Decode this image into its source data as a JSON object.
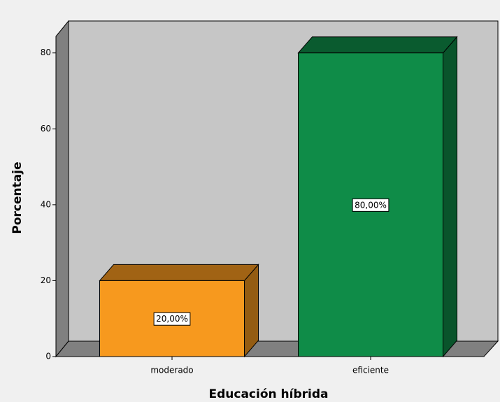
{
  "chart_data": {
    "type": "bar3d",
    "x_label": "Educación híbrida",
    "y_label": "Porcentaje",
    "categories": [
      "moderado",
      "eficiente"
    ],
    "values": [
      20,
      80
    ],
    "value_labels": [
      "20,00%",
      "80,00%"
    ],
    "colors": [
      "#f7991e",
      "#0f8c48"
    ],
    "ylim": [
      0,
      84
    ],
    "yticks": [
      0,
      20,
      40,
      60,
      80
    ]
  }
}
